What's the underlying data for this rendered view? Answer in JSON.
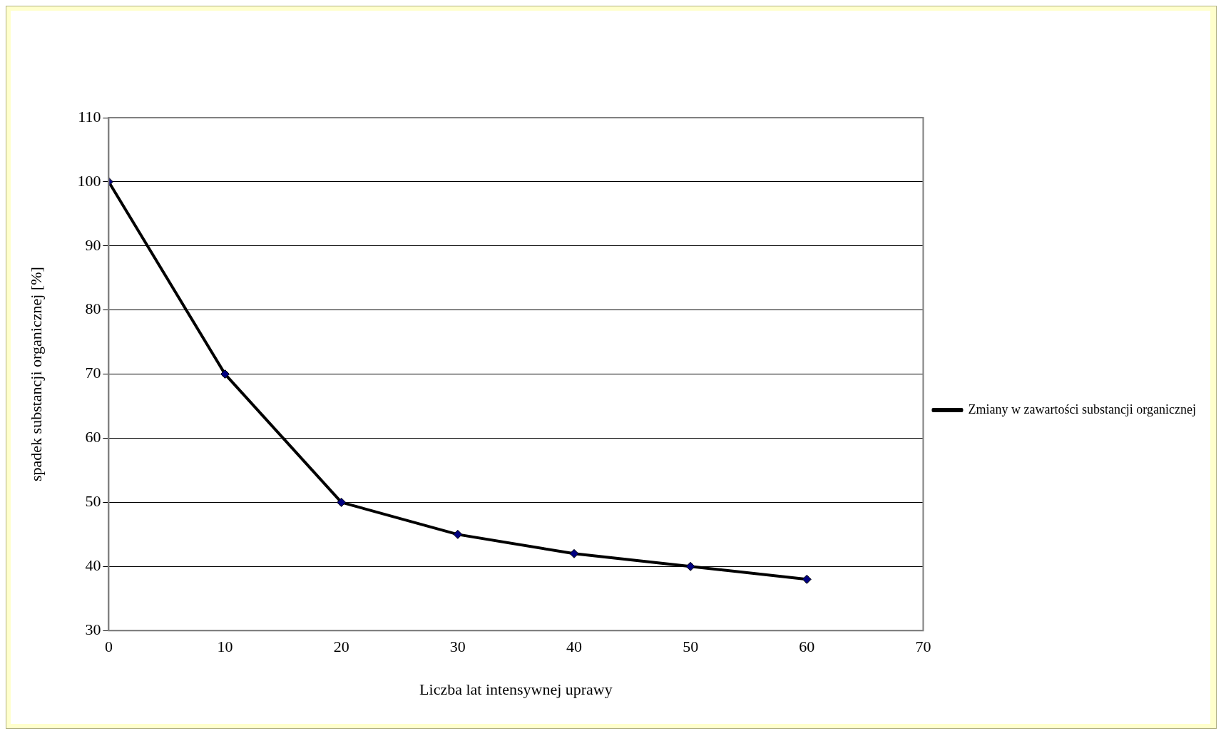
{
  "chart_data": {
    "type": "line",
    "xlabel": "Liczba lat intensywnej uprawy",
    "ylabel": "spadek substancji organicznej [%]",
    "x": [
      0,
      10,
      20,
      30,
      40,
      50,
      60
    ],
    "series": [
      {
        "name": "Zmiany w zawartości substancji organicznej",
        "color": "#000000",
        "colors": [
          "#000080",
          "#000080",
          "#000080",
          "#000080",
          "#000080",
          "#000080",
          "#000080"
        ],
        "values": [
          100,
          70,
          50,
          45,
          42,
          40,
          38
        ]
      }
    ],
    "xlim": [
      0,
      70
    ],
    "xticks": [
      0,
      10,
      20,
      30,
      40,
      50,
      60,
      70
    ],
    "ylim": [
      30,
      110
    ],
    "yticks": [
      30,
      40,
      50,
      60,
      70,
      80,
      90,
      100,
      110
    ],
    "grid": "y",
    "legend": "right",
    "marker": "diamond",
    "line_style": "solid"
  }
}
